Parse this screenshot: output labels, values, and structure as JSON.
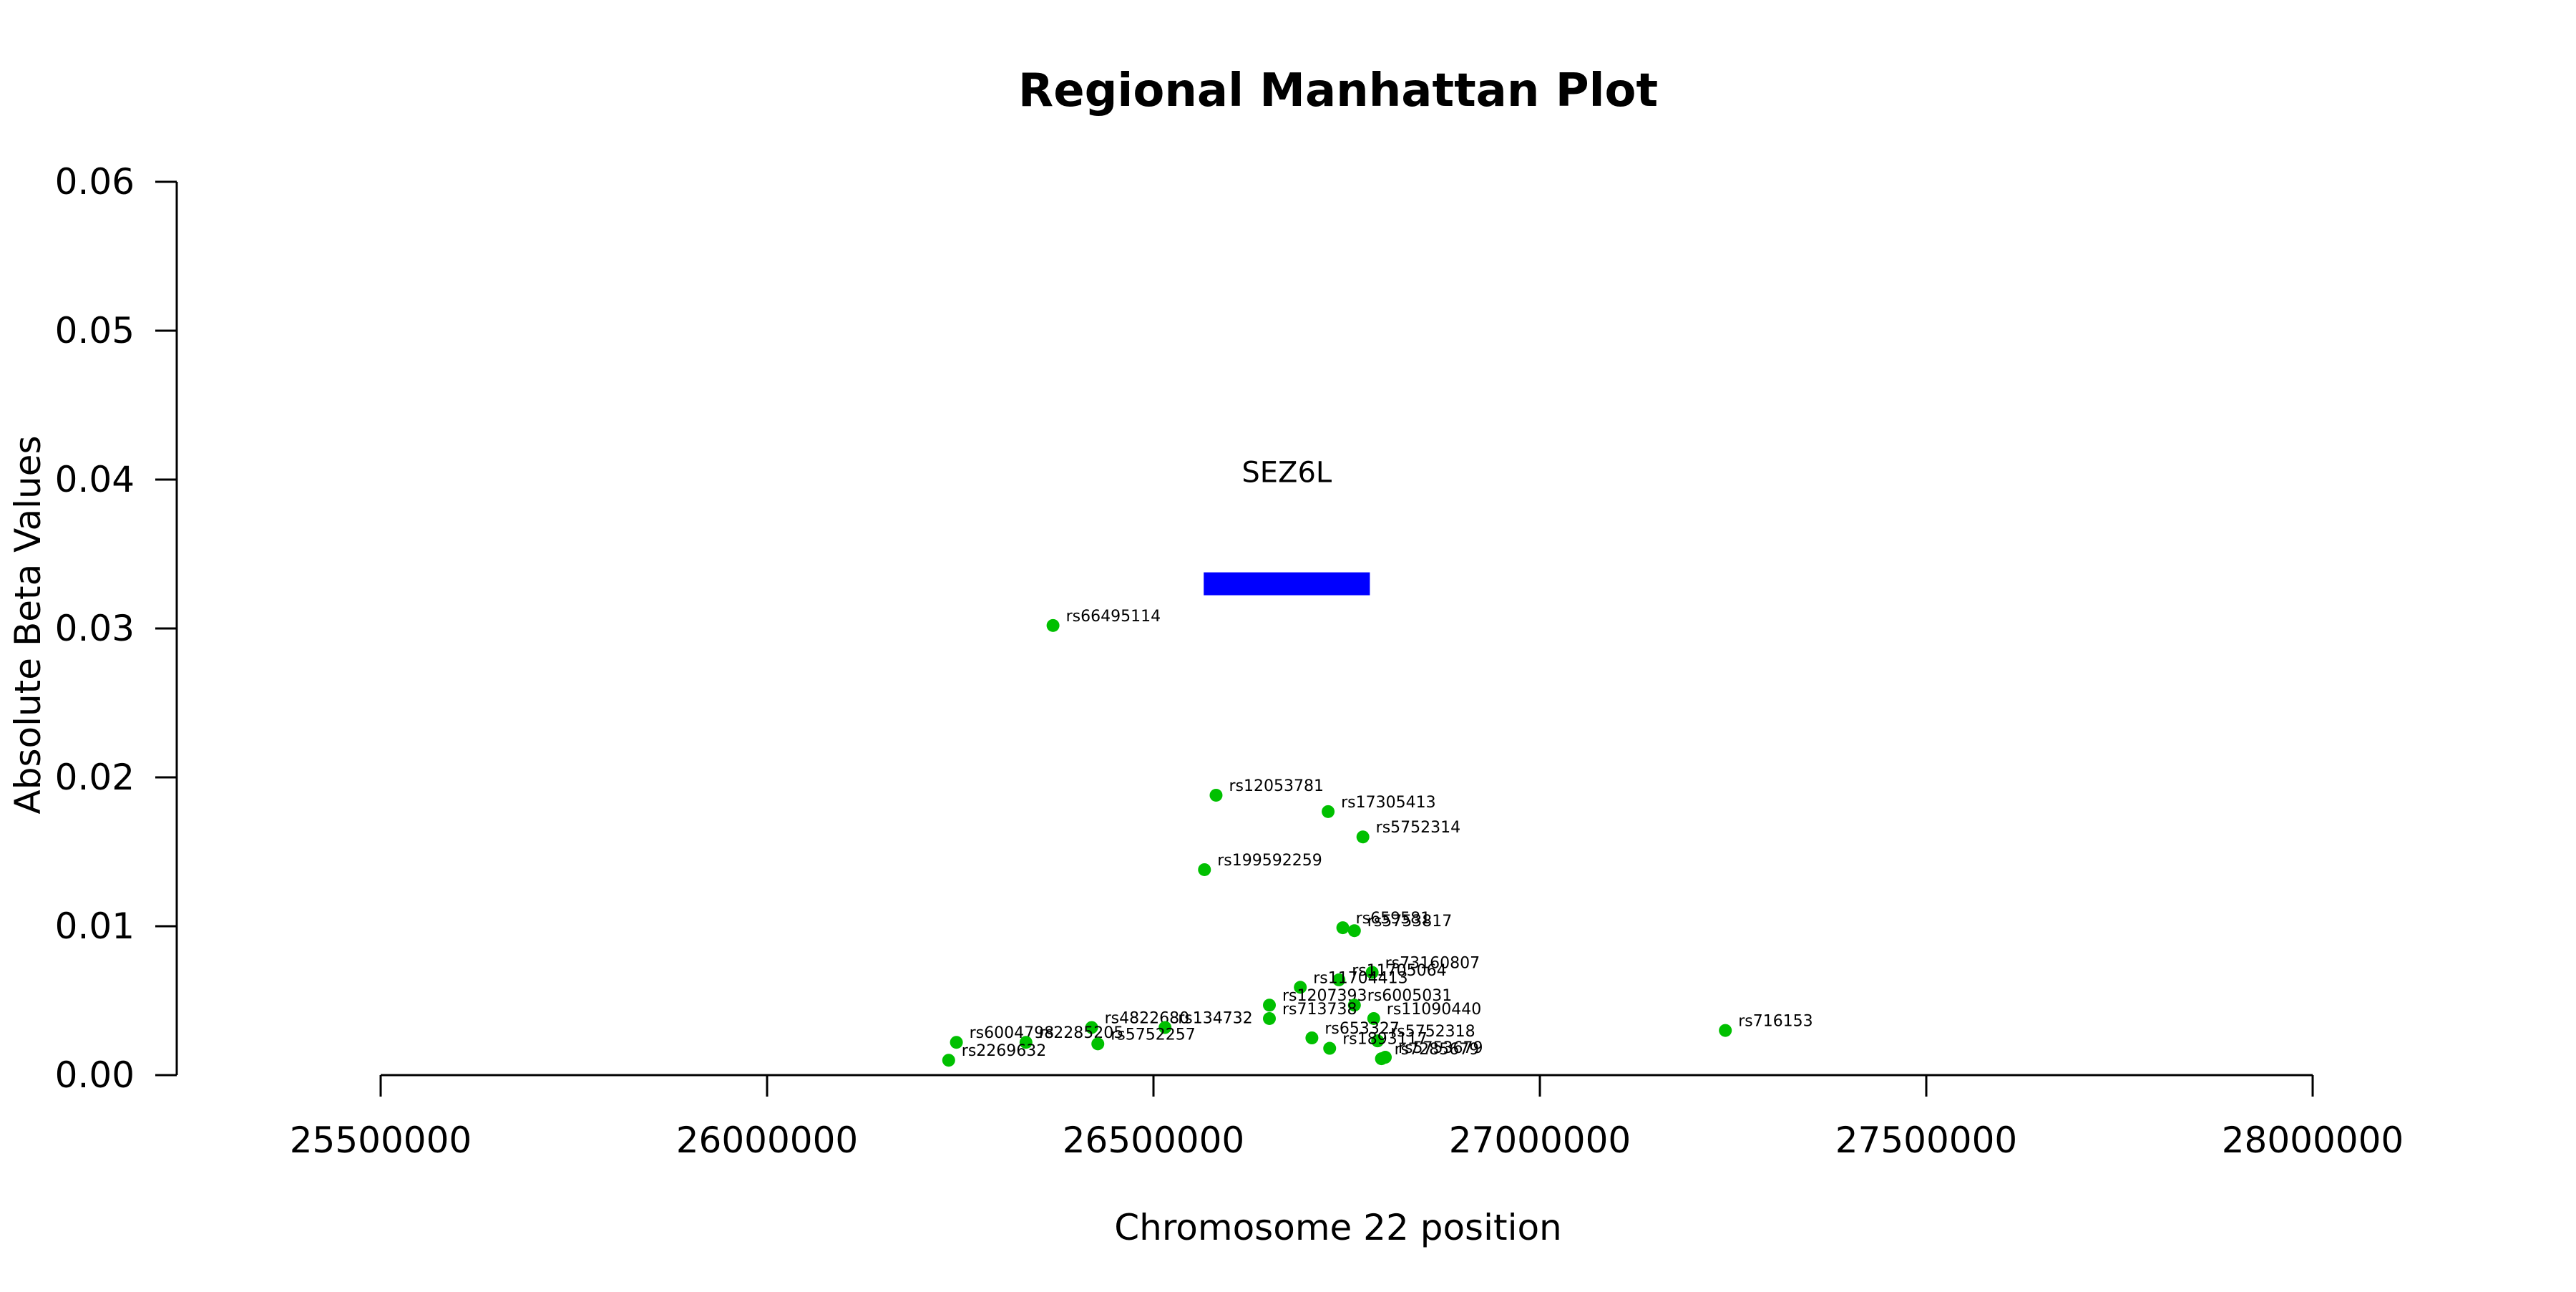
{
  "chart_data": {
    "type": "scatter",
    "title": "Regional Manhattan Plot",
    "xlabel": "Chromosome 22 position",
    "ylabel": "Absolute Beta Values",
    "xlim": [
      25500000,
      28000000
    ],
    "ylim": [
      0,
      0.06
    ],
    "x_ticks": [
      25500000,
      26000000,
      26500000,
      27000000,
      27500000,
      28000000
    ],
    "x_tick_labels": [
      "25500000",
      "26000000",
      "26500000",
      "27000000",
      "27500000",
      "28000000"
    ],
    "y_ticks": [
      0,
      0.01,
      0.02,
      0.03,
      0.04,
      0.05,
      0.06
    ],
    "y_tick_labels": [
      "0.00",
      "0.01",
      "0.02",
      "0.03",
      "0.04",
      "0.05",
      "0.06"
    ],
    "grid": false,
    "legend": "none",
    "point_color": "#00c000",
    "gene_color": "#0000ff",
    "genes": [
      {
        "name": "SEZ6L",
        "start": 26565000,
        "end": 26780000,
        "y": 0.033
      }
    ],
    "points": [
      {
        "label": "rs66495114",
        "x": 26370000,
        "y": 0.0302
      },
      {
        "label": "rs12053781",
        "x": 26581000,
        "y": 0.0188
      },
      {
        "label": "rs17305413",
        "x": 26726000,
        "y": 0.0177
      },
      {
        "label": "rs5752314",
        "x": 26771000,
        "y": 0.016
      },
      {
        "label": "rs199592259",
        "x": 26566000,
        "y": 0.0138
      },
      {
        "label": "rs659581",
        "x": 26745000,
        "y": 0.0099
      },
      {
        "label": "rs5753817",
        "x": 26760000,
        "y": 0.0097
      },
      {
        "label": "rs73160807",
        "x": 26783000,
        "y": 0.0069
      },
      {
        "label": "rs11705064",
        "x": 26740000,
        "y": 0.0064
      },
      {
        "label": "rs11704413",
        "x": 26690000,
        "y": 0.0059
      },
      {
        "label": "rs1207393",
        "x": 26650000,
        "y": 0.0047
      },
      {
        "label": "rs6005031",
        "x": 26760000,
        "y": 0.0047
      },
      {
        "label": "rs713738",
        "x": 26650000,
        "y": 0.0038
      },
      {
        "label": "rs11090440",
        "x": 26785000,
        "y": 0.0038
      },
      {
        "label": "rs4822680",
        "x": 26420000,
        "y": 0.0032
      },
      {
        "label": "rs134732",
        "x": 26515000,
        "y": 0.0032
      },
      {
        "label": "rs716153",
        "x": 27240000,
        "y": 0.003
      },
      {
        "label": "rs653327",
        "x": 26705000,
        "y": 0.0025
      },
      {
        "label": "rs5752318",
        "x": 26790000,
        "y": 0.0023
      },
      {
        "label": "rs6004798",
        "x": 26245000,
        "y": 0.0022
      },
      {
        "label": "rs2285205",
        "x": 26335000,
        "y": 0.0022
      },
      {
        "label": "rs5752257",
        "x": 26428000,
        "y": 0.0021
      },
      {
        "label": "rs1893117",
        "x": 26728000,
        "y": 0.0018
      },
      {
        "label": "rs5753679",
        "x": 26800000,
        "y": 0.0012
      },
      {
        "label": "rs7285679",
        "x": 26795000,
        "y": 0.0011
      },
      {
        "label": "rs2269632",
        "x": 26235000,
        "y": 0.001
      }
    ]
  }
}
